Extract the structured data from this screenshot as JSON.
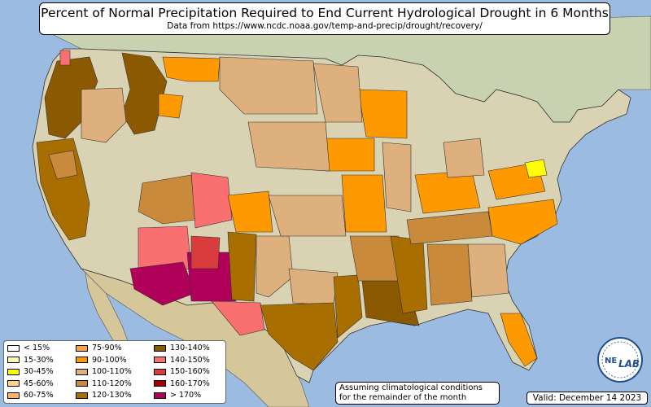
{
  "title": "Percent of Normal Precipitation Required to End Current Hydrological Drought in 6 Months",
  "subtitle": "Data from https://www.ncdc.noaa.gov/temp-and-precip/drought/recovery/",
  "legend": [
    {
      "label": "< 15%",
      "color": "#ffffff"
    },
    {
      "label": "15-30%",
      "color": "#ffffb3"
    },
    {
      "label": "30-45%",
      "color": "#ffff00"
    },
    {
      "label": "45-60%",
      "color": "#fdd38c"
    },
    {
      "label": "60-75%",
      "color": "#fdb462"
    },
    {
      "label": "75-90%",
      "color": "#fda346"
    },
    {
      "label": "90-100%",
      "color": "#ff9900"
    },
    {
      "label": "100-110%",
      "color": "#ddb07e"
    },
    {
      "label": "110-120%",
      "color": "#c98a3c"
    },
    {
      "label": "120-130%",
      "color": "#a86f00"
    },
    {
      "label": "130-140%",
      "color": "#8b5a00"
    },
    {
      "label": "140-150%",
      "color": "#fa7070"
    },
    {
      "label": "150-160%",
      "color": "#d83c3c"
    },
    {
      "label": "160-170%",
      "color": "#a00000"
    },
    {
      "label": "> 170%",
      "color": "#b0005a"
    }
  ],
  "assumption": {
    "line1": "Assuming climatological conditions",
    "line2": "for the remainder of the month"
  },
  "valid": "Valid: December 14 2023",
  "logo": {
    "text1": "NE",
    "text2": "LAB"
  },
  "colors": {
    "ocean": "#9bbbe0",
    "land": "#d9d3b3",
    "canada": "#c8d2b0",
    "mexico": "#d6c79a"
  }
}
